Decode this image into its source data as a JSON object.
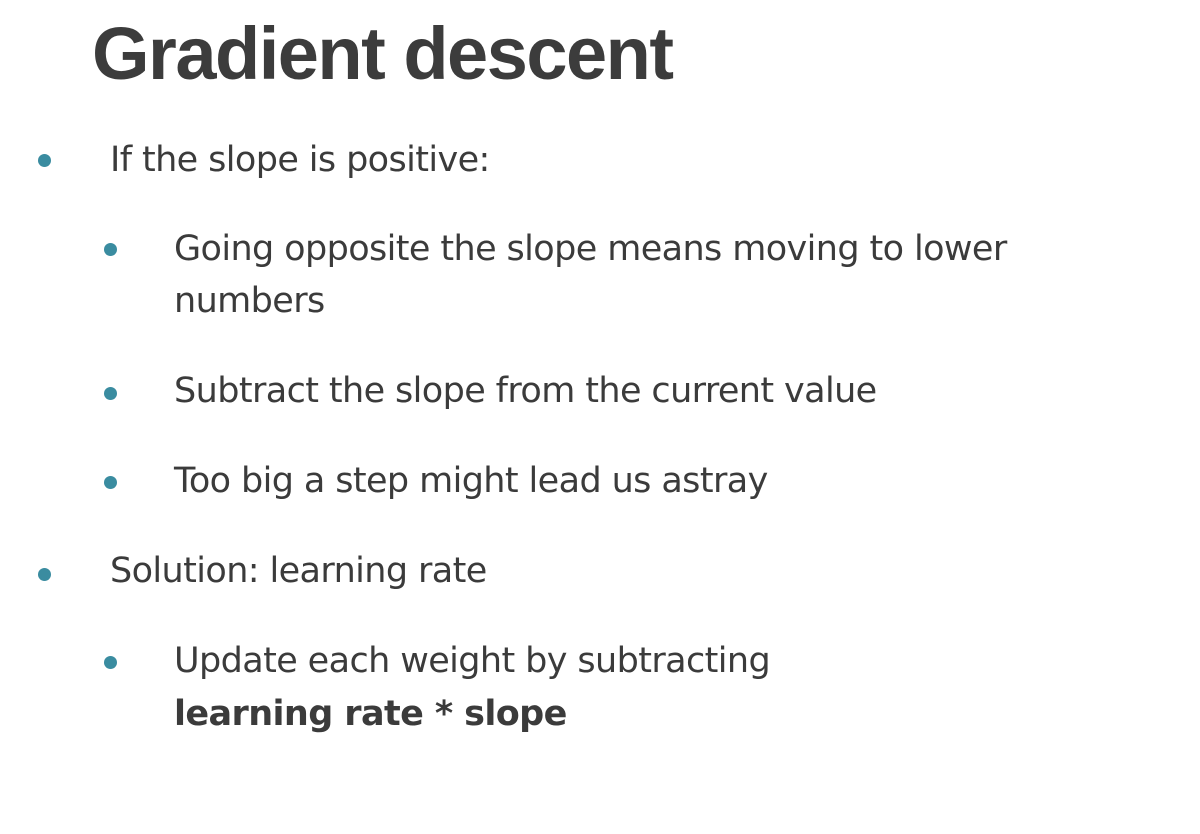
{
  "slide": {
    "title": "Gradient descent",
    "bullets": [
      {
        "text": "If the slope is positive:"
      },
      {
        "text": "Going opposite the slope means moving to lower",
        "text_line2": "numbers"
      },
      {
        "text": "Subtract the slope from the current value"
      },
      {
        "text": "Too big a step might lead us astray"
      },
      {
        "text": "Solution: learning rate"
      },
      {
        "text": "Update each weight by subtracting",
        "bold": "learning rate * slope"
      }
    ],
    "accent_color": "#3a8ca0"
  }
}
